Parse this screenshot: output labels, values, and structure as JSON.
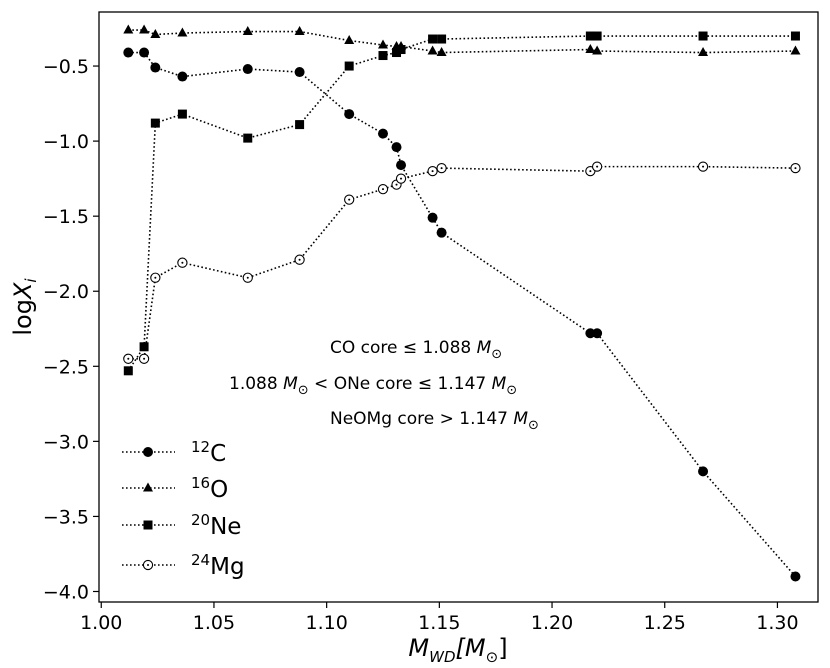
{
  "chart_data": {
    "type": "line",
    "xlabel": {
      "main": "M",
      "sub": "WD",
      "unit_open": "[M",
      "unit_sub": "⊙",
      "unit_close": "]"
    },
    "ylabel": {
      "main": "log",
      "var": "X",
      "sub": "i"
    },
    "xlim": [
      0.999,
      1.318
    ],
    "ylim": [
      -4.07,
      -0.14
    ],
    "xticks": [
      1.0,
      1.05,
      1.1,
      1.15,
      1.2,
      1.25,
      1.3
    ],
    "xtick_labels": [
      "1.00",
      "1.05",
      "1.10",
      "1.15",
      "1.20",
      "1.25",
      "1.30"
    ],
    "yticks": [
      -0.5,
      -1.0,
      -1.5,
      -2.0,
      -2.5,
      -3.0,
      -3.5,
      -4.0
    ],
    "ytick_labels": [
      "−0.5",
      "−1.0",
      "−1.5",
      "−2.0",
      "−2.5",
      "−3.0",
      "−3.5",
      "−4.0"
    ],
    "x": [
      1.012,
      1.019,
      1.024,
      1.036,
      1.065,
      1.088,
      1.11,
      1.125,
      1.131,
      1.133,
      1.147,
      1.151,
      1.217,
      1.22,
      1.267,
      1.308
    ],
    "series": [
      {
        "name": "12C",
        "mass_number": "12",
        "element": "C",
        "marker": "filled-circle",
        "values": [
          -0.41,
          -0.41,
          -0.51,
          -0.57,
          -0.52,
          -0.54,
          -0.82,
          -0.95,
          -1.04,
          -1.16,
          -1.51,
          -1.61,
          -2.28,
          -2.28,
          -3.2,
          -3.9
        ]
      },
      {
        "name": "16O",
        "mass_number": "16",
        "element": "O",
        "marker": "filled-triangle",
        "values": [
          -0.26,
          -0.26,
          -0.29,
          -0.28,
          -0.27,
          -0.27,
          -0.33,
          -0.36,
          -0.37,
          -0.37,
          -0.4,
          -0.41,
          -0.39,
          -0.4,
          -0.41,
          -0.4
        ]
      },
      {
        "name": "20Ne",
        "mass_number": "20",
        "element": "Ne",
        "marker": "filled-square",
        "values": [
          -2.53,
          -2.37,
          -0.88,
          -0.82,
          -0.98,
          -0.89,
          -0.5,
          -0.43,
          -0.41,
          -0.39,
          -0.32,
          -0.32,
          -0.3,
          -0.3,
          -0.3,
          -0.3
        ]
      },
      {
        "name": "24Mg",
        "mass_number": "24",
        "element": "Mg",
        "marker": "open-circle",
        "values": [
          -2.45,
          -2.45,
          -1.91,
          -1.81,
          -1.91,
          -1.79,
          -1.39,
          -1.32,
          -1.29,
          -1.25,
          -1.2,
          -1.18,
          -1.2,
          -1.17,
          -1.17,
          -1.18
        ]
      }
    ],
    "legend_position": "lower-left",
    "annotations": [
      {
        "prefix": "CO core  ≤  1.088 ",
        "mass": "M",
        "sub": "⊙",
        "suffix": ""
      },
      {
        "prefix": "1.088 ",
        "mass": "M",
        "sub": "⊙",
        "suffix": " <  ONe core  ≤  1.147 ",
        "mass2": "M",
        "sub2": "⊙"
      },
      {
        "prefix": "NeOMg core > 1.147 ",
        "mass": "M",
        "sub": "⊙",
        "suffix": ""
      }
    ],
    "grid": false
  }
}
